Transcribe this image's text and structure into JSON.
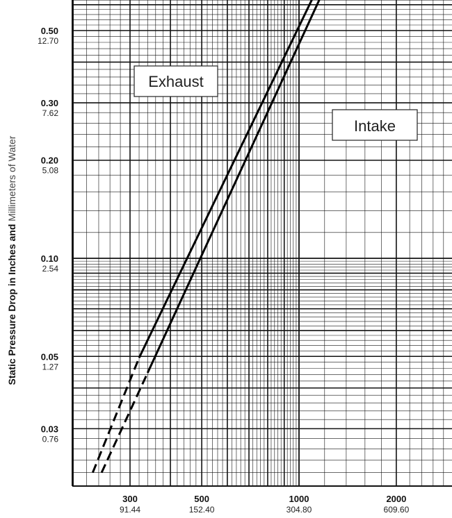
{
  "chart_data": {
    "type": "line",
    "title": "",
    "ylabel_bold": "Static Pressure Drop in Inches and ",
    "ylabel_light": "Millimeters of Water",
    "xlabel": "",
    "x_scale": "log",
    "y_scale": "log",
    "xlim": [
      220,
      2600
    ],
    "ylim": [
      0.022,
      0.65
    ],
    "grid": true,
    "x_ticks": [
      {
        "value": 300,
        "label": "300",
        "sublabel": "91.44"
      },
      {
        "value": 500,
        "label": "500",
        "sublabel": "152.40"
      },
      {
        "value": 1000,
        "label": "1000",
        "sublabel": "304.80"
      },
      {
        "value": 2000,
        "label": "2000",
        "sublabel": "609.60"
      }
    ],
    "y_ticks": [
      {
        "value": 0.5,
        "label": "0.50",
        "sublabel": "12.70"
      },
      {
        "value": 0.3,
        "label": "0.30",
        "sublabel": "7.62"
      },
      {
        "value": 0.2,
        "label": "0.20",
        "sublabel": "5.08"
      },
      {
        "value": 0.1,
        "label": "0.10",
        "sublabel": "2.54"
      },
      {
        "value": 0.05,
        "label": "0.05",
        "sublabel": "1.27"
      },
      {
        "value": 0.03,
        "label": "0.03",
        "sublabel": "0.76"
      }
    ],
    "series": [
      {
        "name": "Exhaust",
        "dashed_x": [
          230,
          320
        ],
        "dashed_y": [
          0.022,
          0.0495
        ],
        "solid_x": [
          320,
          1120
        ],
        "solid_y": [
          0.0495,
          0.65
        ]
      },
      {
        "name": "Intake",
        "dashed_x": [
          245,
          340
        ],
        "dashed_y": [
          0.022,
          0.0445
        ],
        "solid_x": [
          340,
          1180
        ],
        "solid_y": [
          0.0445,
          0.65
        ]
      }
    ],
    "legend": [
      {
        "label": "Exhaust",
        "position": "upper-left"
      },
      {
        "label": "Intake",
        "position": "right"
      }
    ]
  }
}
